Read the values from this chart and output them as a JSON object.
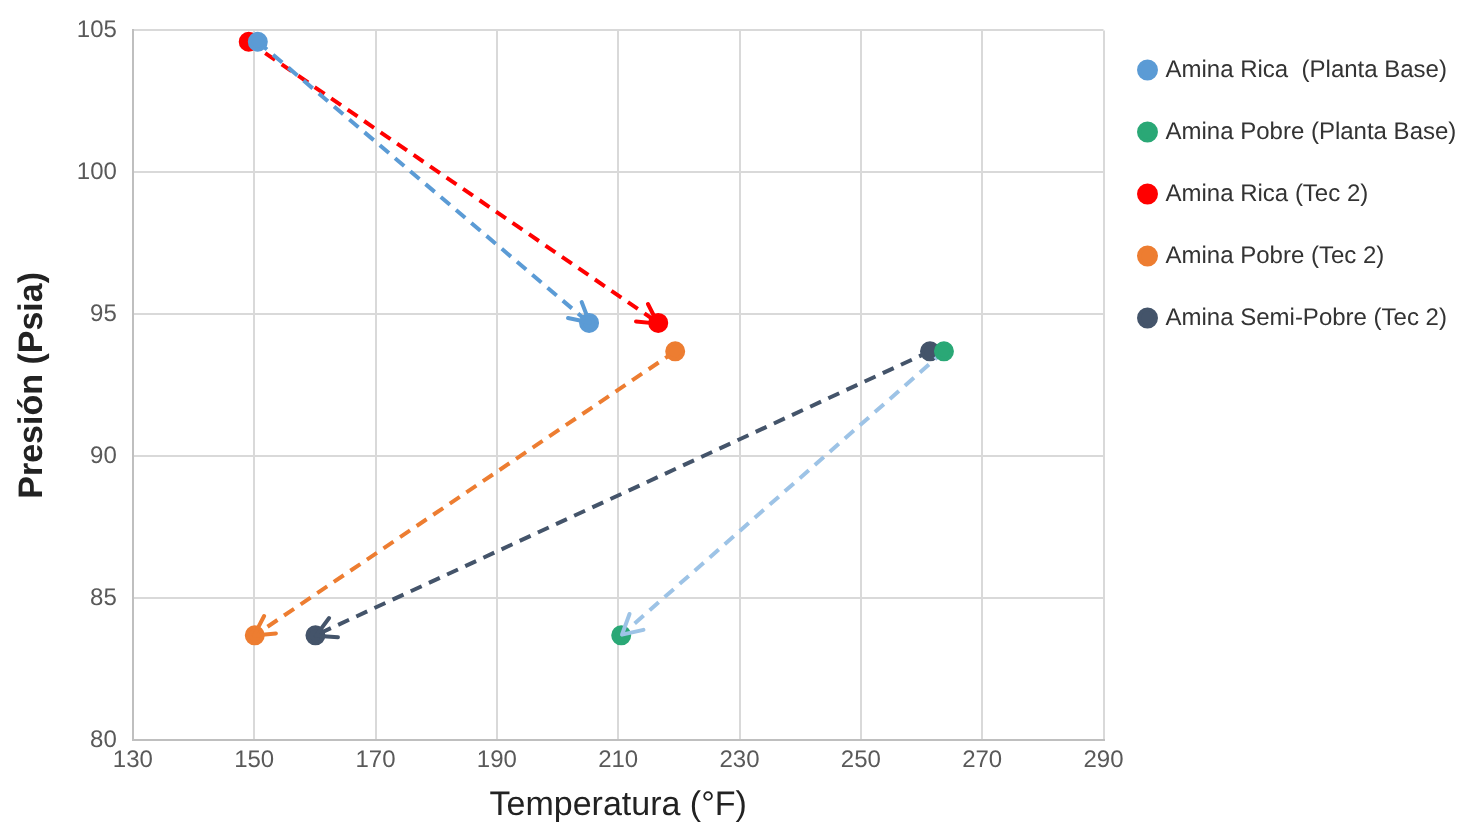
{
  "chart_data": {
    "type": "line",
    "xlabel": "Temperatura (°F)",
    "ylabel": "Presión (Psia)",
    "xlim": [
      130,
      290
    ],
    "xticks": [
      130,
      150,
      170,
      190,
      210,
      230,
      250,
      270,
      290
    ],
    "ylim": [
      80,
      105
    ],
    "yticks": [
      80,
      85,
      90,
      95,
      100,
      105
    ],
    "grid": true,
    "legend": "right",
    "marker": "circle",
    "line_style": "dashed",
    "series": [
      {
        "name": "Amina Rica  (Planta Base)",
        "color": "#5b9bd5",
        "x": [
          150.6,
          205.2
        ],
        "values": [
          104.6,
          94.7
        ]
      },
      {
        "name": "Amina Pobre (Planta Base)",
        "color": "#9dc3e6",
        "colors": [
          "#2aa876",
          "#2aa876"
        ],
        "x": [
          263.7,
          210.5
        ],
        "values": [
          93.7,
          83.7
        ]
      },
      {
        "name": "Amina Rica (Tec 2)",
        "color": "#ff0000",
        "x": [
          149.1,
          216.6
        ],
        "values": [
          104.6,
          94.7
        ]
      },
      {
        "name": "Amina Pobre (Tec 2)",
        "color": "#ed7d31",
        "x": [
          219.4,
          150.1
        ],
        "values": [
          93.7,
          83.7
        ]
      },
      {
        "name": "Amina Semi-Pobre (Tec 2)",
        "color": "#44546a",
        "x": [
          261.4,
          160.1
        ],
        "values": [
          93.7,
          83.7
        ]
      }
    ]
  }
}
